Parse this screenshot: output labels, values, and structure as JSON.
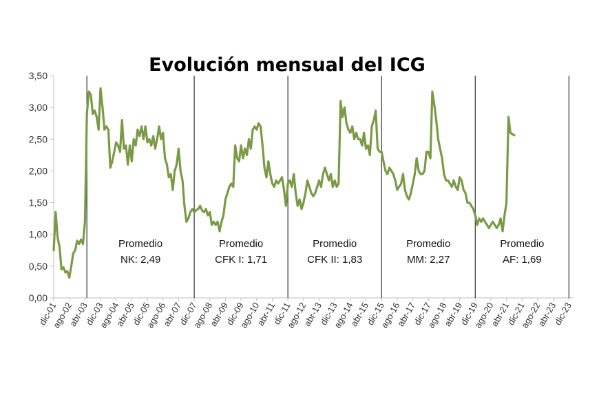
{
  "chart_data": {
    "type": "line",
    "title": "Evolución mensual del ICG",
    "xlabel": "",
    "ylabel": "",
    "ylim": [
      0,
      3.5
    ],
    "yticks": [
      "0,00",
      "0,50",
      "1,00",
      "1,50",
      "2,00",
      "2,50",
      "3,00",
      "3,50"
    ],
    "grid": false,
    "legend": "none",
    "x_tick_labels": [
      "dic-01",
      "ago-02",
      "abr-03",
      "dic-03",
      "ago-04",
      "abr-05",
      "dic-05",
      "ago-06",
      "abr-07",
      "dic-07",
      "ago-08",
      "abr-09",
      "dic-09",
      "ago-10",
      "abr-11",
      "dic-11",
      "ago-12",
      "abr-13",
      "dic-13",
      "ago-14",
      "abr-15",
      "dic-15",
      "ago-16",
      "abr-17",
      "dic-17",
      "ago-18",
      "abr-19",
      "dic-19",
      "ago-20",
      "abr-21",
      "dic-21",
      "ago-22",
      "abr-23",
      "dic-23"
    ],
    "x_start": "dic-01",
    "x_end": "feb-24",
    "period_dividers": [
      "may-03",
      "dic-07",
      "dic-11",
      "dic-15",
      "dic-19",
      "dic-23"
    ],
    "annotations": [
      {
        "line1": "Promedio",
        "line2": "NK: 2,49"
      },
      {
        "line1": "Promedio",
        "line2": "CFK I: 1,71"
      },
      {
        "line1": "Promedio",
        "line2": "CFK II: 1,83"
      },
      {
        "line1": "Promedio",
        "line2": "MM: 2,27"
      },
      {
        "line1": "Promedio",
        "line2": "AF: 1,69"
      }
    ],
    "series": [
      {
        "color": "#7a9a45",
        "points": [
          [
            "dic-01",
            0.75
          ],
          [
            "ene-02",
            1.35
          ],
          [
            "feb-02",
            0.95
          ],
          [
            "mar-02",
            0.8
          ],
          [
            "abr-02",
            0.45
          ],
          [
            "may-02",
            0.48
          ],
          [
            "jun-02",
            0.4
          ],
          [
            "jul-02",
            0.42
          ],
          [
            "ago-02",
            0.32
          ],
          [
            "sep-02",
            0.5
          ],
          [
            "oct-02",
            0.7
          ],
          [
            "nov-02",
            0.75
          ],
          [
            "dic-02",
            0.9
          ],
          [
            "ene-03",
            0.85
          ],
          [
            "feb-03",
            0.92
          ],
          [
            "mar-03",
            0.85
          ],
          [
            "abr-03",
            1.2
          ],
          [
            "may-03",
            2.9
          ],
          [
            "jun-03",
            3.25
          ],
          [
            "jul-03",
            3.2
          ],
          [
            "ago-03",
            2.9
          ],
          [
            "sep-03",
            2.95
          ],
          [
            "oct-03",
            2.85
          ],
          [
            "nov-03",
            2.65
          ],
          [
            "dic-03",
            3.3
          ],
          [
            "ene-04",
            3.0
          ],
          [
            "feb-04",
            2.65
          ],
          [
            "mar-04",
            2.7
          ],
          [
            "abr-04",
            2.65
          ],
          [
            "may-04",
            2.05
          ],
          [
            "jun-04",
            2.15
          ],
          [
            "jul-04",
            2.3
          ],
          [
            "ago-04",
            2.45
          ],
          [
            "sep-04",
            2.4
          ],
          [
            "oct-04",
            2.3
          ],
          [
            "nov-04",
            2.8
          ],
          [
            "dic-04",
            2.35
          ],
          [
            "ene-05",
            2.4
          ],
          [
            "feb-05",
            2.1
          ],
          [
            "mar-05",
            2.4
          ],
          [
            "abr-05",
            2.15
          ],
          [
            "may-05",
            2.5
          ],
          [
            "jun-05",
            2.4
          ],
          [
            "jul-05",
            2.65
          ],
          [
            "ago-05",
            2.55
          ],
          [
            "sep-05",
            2.7
          ],
          [
            "oct-05",
            2.5
          ],
          [
            "nov-05",
            2.7
          ],
          [
            "dic-05",
            2.45
          ],
          [
            "ene-06",
            2.5
          ],
          [
            "feb-06",
            2.4
          ],
          [
            "mar-06",
            2.55
          ],
          [
            "abr-06",
            2.35
          ],
          [
            "may-06",
            2.5
          ],
          [
            "jun-06",
            2.7
          ],
          [
            "jul-06",
            2.5
          ],
          [
            "ago-06",
            2.6
          ],
          [
            "sep-06",
            2.2
          ],
          [
            "oct-06",
            2.1
          ],
          [
            "nov-06",
            1.9
          ],
          [
            "dic-06",
            1.95
          ],
          [
            "ene-07",
            1.7
          ],
          [
            "feb-07",
            2.0
          ],
          [
            "mar-07",
            2.1
          ],
          [
            "abr-07",
            2.35
          ],
          [
            "may-07",
            2.0
          ],
          [
            "jun-07",
            1.85
          ],
          [
            "jul-07",
            1.45
          ],
          [
            "ago-07",
            1.2
          ],
          [
            "sep-07",
            1.25
          ],
          [
            "oct-07",
            1.35
          ],
          [
            "nov-07",
            1.4
          ],
          [
            "dic-07",
            1.35
          ],
          [
            "ene-08",
            1.38
          ],
          [
            "feb-08",
            1.4
          ],
          [
            "mar-08",
            1.45
          ],
          [
            "abr-08",
            1.38
          ],
          [
            "may-08",
            1.35
          ],
          [
            "jun-08",
            1.4
          ],
          [
            "jul-08",
            1.3
          ],
          [
            "ago-08",
            1.35
          ],
          [
            "sep-08",
            1.15
          ],
          [
            "oct-08",
            1.2
          ],
          [
            "nov-08",
            1.15
          ],
          [
            "dic-08",
            1.2
          ],
          [
            "ene-09",
            1.05
          ],
          [
            "feb-09",
            1.2
          ],
          [
            "mar-09",
            1.3
          ],
          [
            "abr-09",
            1.55
          ],
          [
            "may-09",
            1.65
          ],
          [
            "jun-09",
            1.75
          ],
          [
            "jul-09",
            1.8
          ],
          [
            "ago-09",
            1.75
          ],
          [
            "sep-09",
            2.4
          ],
          [
            "oct-09",
            2.2
          ],
          [
            "nov-09",
            2.15
          ],
          [
            "dic-09",
            2.4
          ],
          [
            "ene-10",
            2.2
          ],
          [
            "feb-10",
            2.35
          ],
          [
            "mar-10",
            2.25
          ],
          [
            "abr-10",
            2.5
          ],
          [
            "may-10",
            2.35
          ],
          [
            "jun-10",
            2.65
          ],
          [
            "jul-10",
            2.7
          ],
          [
            "ago-10",
            2.65
          ],
          [
            "sep-10",
            2.75
          ],
          [
            "oct-10",
            2.7
          ],
          [
            "nov-10",
            2.4
          ],
          [
            "dic-10",
            2.05
          ],
          [
            "ene-11",
            1.9
          ],
          [
            "feb-11",
            2.15
          ],
          [
            "mar-11",
            1.95
          ],
          [
            "abr-11",
            1.8
          ],
          [
            "may-11",
            1.75
          ],
          [
            "jun-11",
            1.85
          ],
          [
            "jul-11",
            1.8
          ],
          [
            "ago-11",
            1.85
          ],
          [
            "sep-11",
            1.9
          ],
          [
            "oct-11",
            1.7
          ],
          [
            "nov-11",
            1.45
          ],
          [
            "dic-11",
            1.8
          ],
          [
            "ene-12",
            1.85
          ],
          [
            "feb-12",
            1.75
          ],
          [
            "mar-12",
            1.95
          ],
          [
            "abr-12",
            1.65
          ],
          [
            "may-12",
            1.45
          ],
          [
            "jun-12",
            1.55
          ],
          [
            "jul-12",
            1.4
          ],
          [
            "ago-12",
            1.5
          ],
          [
            "sep-12",
            1.65
          ],
          [
            "oct-12",
            1.85
          ],
          [
            "nov-12",
            1.75
          ],
          [
            "dic-12",
            1.65
          ],
          [
            "ene-13",
            1.6
          ],
          [
            "feb-13",
            1.65
          ],
          [
            "mar-13",
            1.75
          ],
          [
            "abr-13",
            1.85
          ],
          [
            "may-13",
            1.75
          ],
          [
            "jun-13",
            1.95
          ],
          [
            "jul-13",
            2.05
          ],
          [
            "ago-13",
            1.95
          ],
          [
            "sep-13",
            1.85
          ],
          [
            "oct-13",
            1.95
          ],
          [
            "nov-13",
            1.75
          ],
          [
            "dic-13",
            1.85
          ],
          [
            "ene-14",
            1.75
          ],
          [
            "feb-14",
            1.8
          ],
          [
            "mar-14",
            3.1
          ],
          [
            "abr-14",
            2.85
          ],
          [
            "may-14",
            3.0
          ],
          [
            "jun-14",
            2.75
          ],
          [
            "jul-14",
            2.65
          ],
          [
            "ago-14",
            2.6
          ],
          [
            "sep-14",
            2.7
          ],
          [
            "oct-14",
            2.5
          ],
          [
            "nov-14",
            2.6
          ],
          [
            "dic-14",
            2.5
          ],
          [
            "ene-15",
            2.5
          ],
          [
            "feb-15",
            2.4
          ],
          [
            "mar-15",
            2.6
          ],
          [
            "abr-15",
            2.35
          ],
          [
            "may-15",
            2.4
          ],
          [
            "jun-15",
            2.25
          ],
          [
            "jul-15",
            2.7
          ],
          [
            "ago-15",
            2.8
          ],
          [
            "sep-15",
            2.95
          ],
          [
            "oct-15",
            2.35
          ],
          [
            "nov-15",
            2.3
          ],
          [
            "dic-15",
            2.3
          ],
          [
            "ene-16",
            2.15
          ],
          [
            "feb-16",
            2.0
          ],
          [
            "mar-16",
            1.95
          ],
          [
            "abr-16",
            2.05
          ],
          [
            "may-16",
            2.0
          ],
          [
            "jun-16",
            1.95
          ],
          [
            "jul-16",
            1.85
          ],
          [
            "ago-16",
            1.7
          ],
          [
            "sep-16",
            1.75
          ],
          [
            "oct-16",
            1.8
          ],
          [
            "nov-16",
            1.95
          ],
          [
            "dic-16",
            1.7
          ],
          [
            "ene-17",
            1.6
          ],
          [
            "feb-17",
            1.55
          ],
          [
            "mar-17",
            1.65
          ],
          [
            "abr-17",
            1.8
          ],
          [
            "may-17",
            1.95
          ],
          [
            "jun-17",
            2.2
          ],
          [
            "jul-17",
            2.0
          ],
          [
            "ago-17",
            1.95
          ],
          [
            "sep-17",
            1.95
          ],
          [
            "oct-17",
            2.0
          ],
          [
            "nov-17",
            2.3
          ],
          [
            "dic-17",
            2.3
          ],
          [
            "ene-18",
            2.2
          ],
          [
            "feb-18",
            3.25
          ],
          [
            "mar-18",
            3.05
          ],
          [
            "abr-18",
            2.8
          ],
          [
            "may-18",
            2.5
          ],
          [
            "jun-18",
            2.35
          ],
          [
            "jul-18",
            2.2
          ],
          [
            "ago-18",
            1.95
          ],
          [
            "sep-18",
            1.85
          ],
          [
            "oct-18",
            1.85
          ],
          [
            "nov-18",
            1.8
          ],
          [
            "dic-18",
            1.75
          ],
          [
            "ene-19",
            1.85
          ],
          [
            "feb-19",
            1.75
          ],
          [
            "mar-19",
            1.7
          ],
          [
            "abr-19",
            1.9
          ],
          [
            "may-19",
            1.85
          ],
          [
            "jun-19",
            1.7
          ],
          [
            "jul-19",
            1.65
          ],
          [
            "ago-19",
            1.5
          ],
          [
            "sep-19",
            1.5
          ],
          [
            "oct-19",
            1.45
          ],
          [
            "nov-19",
            1.4
          ],
          [
            "dic-19",
            1.3
          ],
          [
            "ene-20",
            1.15
          ],
          [
            "feb-20",
            1.25
          ],
          [
            "mar-20",
            1.2
          ],
          [
            "abr-20",
            1.25
          ],
          [
            "may-20",
            1.2
          ],
          [
            "jun-20",
            1.15
          ],
          [
            "jul-20",
            1.1
          ],
          [
            "ago-20",
            1.15
          ],
          [
            "sep-20",
            1.2
          ],
          [
            "oct-20",
            1.15
          ],
          [
            "nov-20",
            1.1
          ],
          [
            "dic-20",
            1.15
          ],
          [
            "ene-21",
            1.25
          ],
          [
            "feb-21",
            1.05
          ],
          [
            "mar-21",
            1.3
          ],
          [
            "abr-21",
            1.5
          ],
          [
            "may-21",
            2.85
          ],
          [
            "jun-21",
            2.6
          ],
          [
            "jul-21",
            2.58
          ],
          [
            "ago-21",
            2.56
          ]
        ]
      }
    ]
  }
}
